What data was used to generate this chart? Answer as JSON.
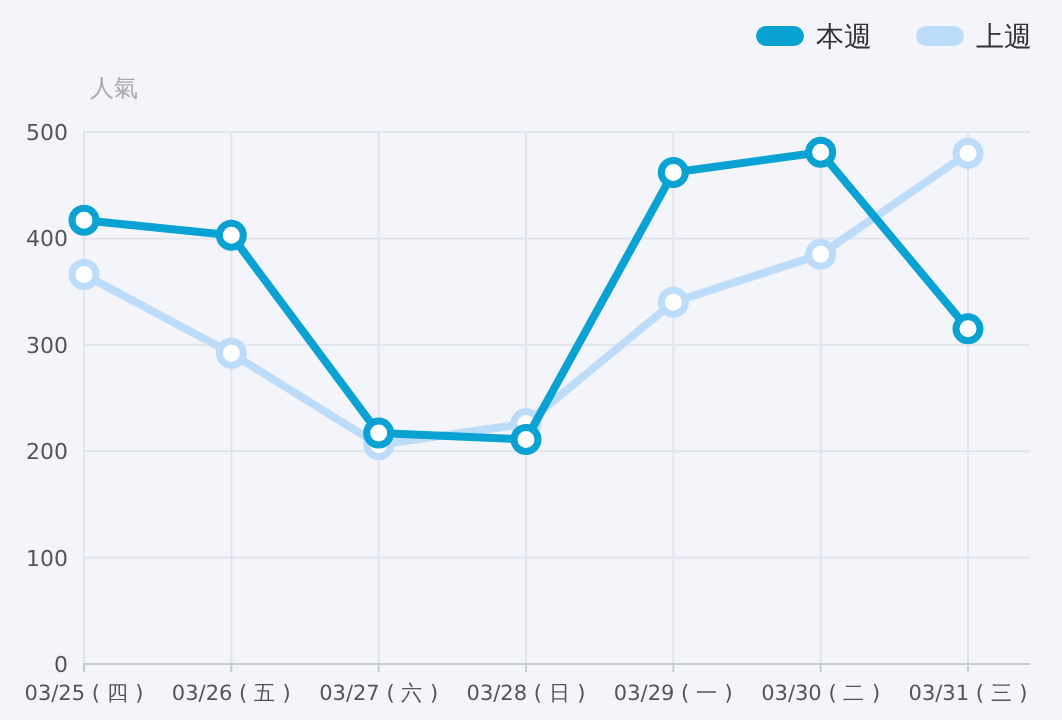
{
  "chart_data": {
    "type": "line",
    "ylabel": "人氣",
    "categories": [
      "03/25 ( 四 )",
      "03/26 ( 五 )",
      "03/27 ( 六 )",
      "03/28 ( 日 )",
      "03/29 ( 一 )",
      "03/30 ( 二 )",
      "03/31 ( 三 )"
    ],
    "series": [
      {
        "name": "本週",
        "color": "#0aa1d3",
        "values": [
          417,
          403,
          217,
          211,
          462,
          481,
          315
        ]
      },
      {
        "name": "上週",
        "color": "#bddcfa",
        "values": [
          366,
          292,
          206,
          226,
          340,
          385,
          480
        ]
      }
    ],
    "ylim": [
      0,
      500
    ],
    "yticks": [
      0,
      100,
      200,
      300,
      400,
      500
    ],
    "grid": true,
    "legend": "top right",
    "marker": "circle"
  }
}
